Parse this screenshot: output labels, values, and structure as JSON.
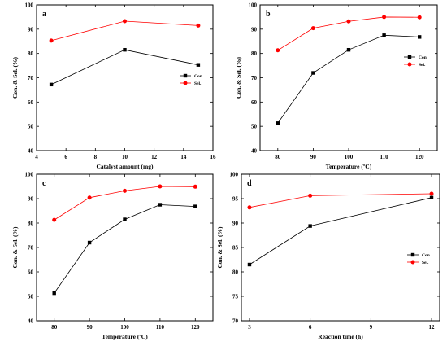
{
  "colors": {
    "con": "#000000",
    "sel": "#ff0000"
  },
  "chart_data": [
    {
      "type": "line",
      "panel_label": "a",
      "x": [
        5,
        10,
        15
      ],
      "xlabel": "Catalyst amount (mg)",
      "ylabel": "Con. & Sel. (%)",
      "xlim": [
        4,
        16
      ],
      "ylim": [
        40,
        100
      ],
      "xticks": [
        4,
        6,
        8,
        10,
        12,
        14,
        16
      ],
      "yticks": [
        40,
        50,
        60,
        70,
        80,
        90,
        100
      ],
      "series": [
        {
          "name": "Con.",
          "values": [
            67.2,
            81.5,
            75.3
          ],
          "color": "#000000",
          "marker": "square"
        },
        {
          "name": "Sel.",
          "values": [
            85.3,
            93.3,
            91.5
          ],
          "color": "#ff0000",
          "marker": "circle"
        }
      ],
      "legend": "right"
    },
    {
      "type": "line",
      "panel_label": "b",
      "x": [
        80,
        90,
        100,
        110,
        120
      ],
      "xlabel": "Temperature (ºC)",
      "ylabel": "Con. & Sel. (%)",
      "xlim": [
        75,
        125
      ],
      "ylim": [
        40,
        100
      ],
      "xticks": [
        80,
        90,
        100,
        110,
        120
      ],
      "yticks": [
        40,
        50,
        60,
        70,
        80,
        90,
        100
      ],
      "series": [
        {
          "name": "Con.",
          "values": [
            51.3,
            72.0,
            81.5,
            87.5,
            86.8
          ],
          "color": "#000000",
          "marker": "square"
        },
        {
          "name": "Sel.",
          "values": [
            81.3,
            90.4,
            93.2,
            95.0,
            94.9
          ],
          "color": "#ff0000",
          "marker": "circle"
        }
      ],
      "legend": "right"
    },
    {
      "type": "line",
      "panel_label": "c",
      "x": [
        80,
        90,
        100,
        110,
        120
      ],
      "xlabel": "Temperature (ºC)",
      "ylabel": "Con. & Sel. (%)",
      "xlim": [
        75,
        125
      ],
      "ylim": [
        40,
        100
      ],
      "xticks": [
        80,
        90,
        100,
        110,
        120
      ],
      "yticks": [
        40,
        50,
        60,
        70,
        80,
        90,
        100
      ],
      "series": [
        {
          "name": "Con.",
          "values": [
            51.3,
            72.0,
            81.5,
            87.5,
            86.8
          ],
          "color": "#000000",
          "marker": "square"
        },
        {
          "name": "Sel.",
          "values": [
            81.3,
            90.4,
            93.2,
            95.0,
            94.9
          ],
          "color": "#ff0000",
          "marker": "circle"
        }
      ],
      "legend": "none"
    },
    {
      "type": "line",
      "panel_label": "d",
      "x": [
        3,
        6,
        12
      ],
      "xlabel": "Reaction time (h)",
      "ylabel": "Con. & Sel. (%)",
      "xlim": [
        2.6,
        12.4
      ],
      "ylim": [
        70,
        100
      ],
      "xticks": [
        3,
        6,
        9,
        12
      ],
      "yticks": [
        70,
        75,
        80,
        85,
        90,
        95,
        100
      ],
      "series": [
        {
          "name": "Con.",
          "values": [
            81.5,
            89.4,
            95.2
          ],
          "color": "#000000",
          "marker": "square"
        },
        {
          "name": "Sel.",
          "values": [
            93.2,
            95.6,
            96.0
          ],
          "color": "#ff0000",
          "marker": "circle"
        }
      ],
      "legend": "right"
    }
  ]
}
